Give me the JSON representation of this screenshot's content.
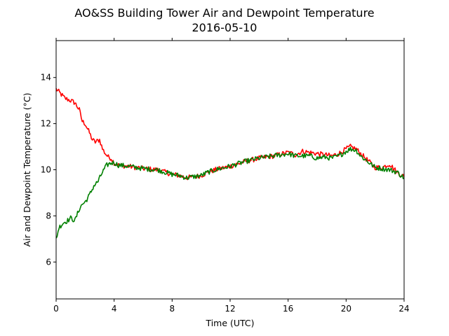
{
  "chart_data": {
    "type": "line",
    "title": "AO&SS Building Tower Air and Dewpoint Temperature",
    "subtitle": "2016-05-10",
    "xlabel": "Time (UTC)",
    "ylabel": "Air and Dewpoint Temperature (°C)",
    "xlim": [
      0,
      24
    ],
    "ylim": [
      4.4,
      15.6
    ],
    "xticks": [
      0,
      4,
      8,
      12,
      16,
      20,
      24
    ],
    "yticks": [
      6,
      8,
      10,
      12,
      14
    ],
    "grid": false,
    "legend": "none",
    "series": [
      {
        "color": "#ff0000",
        "x": [
          0,
          0.3,
          0.6,
          1.0,
          1.3,
          1.6,
          1.8,
          2.0,
          2.3,
          2.5,
          2.7,
          3.0,
          3.2,
          3.4,
          3.6,
          3.8,
          4.0,
          4.3,
          5,
          6,
          7,
          8,
          8.5,
          9,
          9.5,
          10,
          10.5,
          11,
          12,
          12.5,
          13,
          14,
          15,
          16,
          16.5,
          17,
          17.5,
          18,
          18.5,
          19,
          19.5,
          20,
          20.3,
          20.7,
          21,
          21.5,
          22,
          22.5,
          23,
          23.5,
          24
        ],
        "y": [
          13.5,
          13.3,
          13.1,
          13.0,
          12.9,
          12.6,
          12.1,
          12.0,
          11.6,
          11.3,
          11.2,
          11.3,
          10.9,
          10.7,
          10.55,
          10.5,
          10.3,
          10.2,
          10.15,
          10.05,
          10.0,
          9.8,
          9.75,
          9.65,
          9.7,
          9.75,
          9.9,
          10.0,
          10.15,
          10.25,
          10.35,
          10.5,
          10.6,
          10.75,
          10.65,
          10.8,
          10.75,
          10.7,
          10.65,
          10.6,
          10.7,
          10.9,
          11.0,
          10.9,
          10.7,
          10.4,
          10.1,
          10.1,
          10.25,
          9.9,
          9.7
        ]
      },
      {
        "color": "#008000",
        "x": [
          0,
          0.2,
          0.5,
          0.8,
          1.0,
          1.3,
          1.6,
          1.8,
          2.0,
          2.3,
          2.6,
          2.9,
          3.2,
          3.5,
          3.8,
          4.0,
          4.3,
          5,
          6,
          7,
          8,
          8.5,
          9,
          9.5,
          10,
          10.5,
          11,
          12,
          12.5,
          13,
          14,
          15,
          16,
          16.5,
          17,
          17.5,
          18,
          18.5,
          19,
          19.5,
          20,
          20.3,
          20.7,
          21,
          21.5,
          22,
          22.5,
          23,
          23.5,
          24
        ],
        "y": [
          7.0,
          7.5,
          7.7,
          7.8,
          7.9,
          7.8,
          8.3,
          8.5,
          8.6,
          8.9,
          9.3,
          9.5,
          9.9,
          10.2,
          10.3,
          10.3,
          10.2,
          10.15,
          10.05,
          10.0,
          9.8,
          9.75,
          9.65,
          9.7,
          9.75,
          9.9,
          10.0,
          10.15,
          10.25,
          10.35,
          10.5,
          10.6,
          10.7,
          10.6,
          10.6,
          10.6,
          10.5,
          10.55,
          10.5,
          10.6,
          10.8,
          10.9,
          10.85,
          10.6,
          10.35,
          10.1,
          10.05,
          10.0,
          9.9,
          9.65
        ]
      }
    ]
  }
}
